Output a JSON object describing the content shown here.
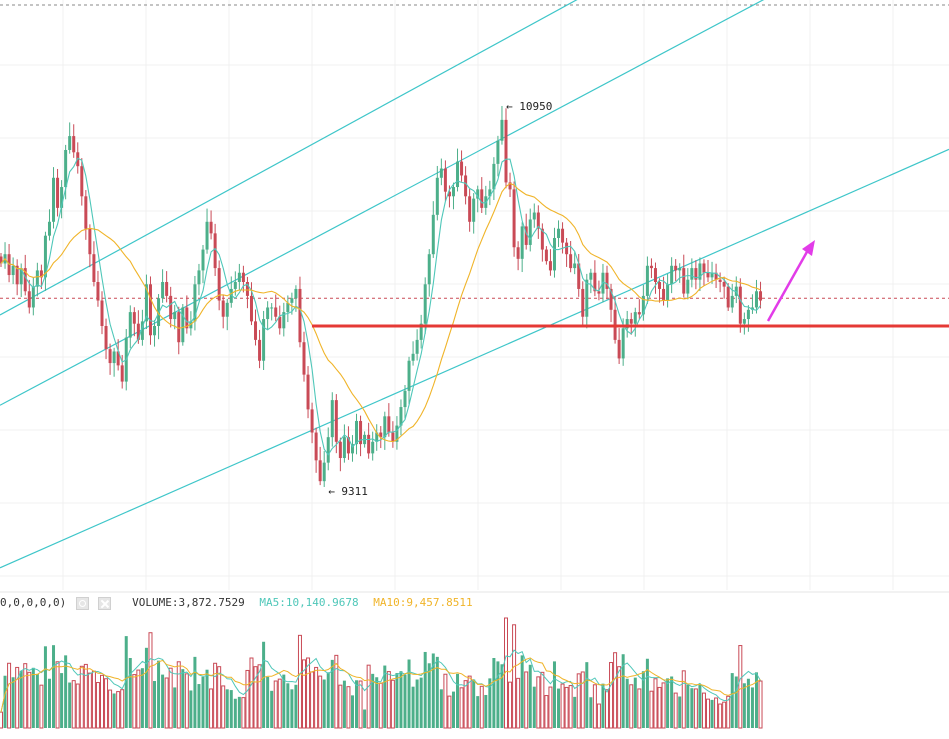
{
  "chart_data": {
    "type": "candlestick",
    "annotations": {
      "high_label": "← 10950",
      "low_label": "← 9311",
      "high_value": 10950,
      "low_value": 9311
    },
    "volume_legend": {
      "params": "0,0,0,0,0)",
      "volume": "VOLUME:3,872.7529",
      "ma5": "MA5:10,140.9678",
      "ma10": "MA10:9,457.8511"
    },
    "colors": {
      "up": "#4caf8a",
      "down": "#c94a56",
      "ma_fast": "#4fc7b9",
      "ma_slow": "#f0b429",
      "channel": "#3ec6c9",
      "support": "#e53935",
      "arrow": "#e23ce8",
      "reference": "#c94a56"
    },
    "support_level": 10000,
    "reference_level": 10120,
    "channel_lines": [
      {
        "name": "upper",
        "p0": [
          0,
          10050
        ],
        "p1": [
          150,
          11480
        ]
      },
      {
        "name": "middle",
        "p0": [
          0,
          9660
        ],
        "p1": [
          150,
          11050
        ]
      },
      {
        "name": "lower",
        "p0": [
          25,
          9150
        ],
        "p1": [
          155,
          10150
        ]
      }
    ],
    "closes": [
      10270,
      10310,
      10220,
      10260,
      10180,
      10250,
      10150,
      10080,
      10170,
      10240,
      10210,
      10390,
      10450,
      10640,
      10510,
      10600,
      10760,
      10820,
      10750,
      10690,
      10560,
      10420,
      10310,
      10190,
      10110,
      10000,
      9900,
      9840,
      9890,
      9830,
      9760,
      9950,
      10060,
      10010,
      9940,
      10020,
      10180,
      9960,
      10000,
      10120,
      10190,
      10130,
      10030,
      10060,
      9930,
      10080,
      9990,
      10020,
      10180,
      10240,
      10330,
      10450,
      10400,
      10250,
      10110,
      10040,
      10100,
      10160,
      10190,
      10230,
      10190,
      10130,
      10020,
      9940,
      9850,
      10030,
      10080,
      10080,
      10040,
      9990,
      10060,
      10100,
      10120,
      10160,
      9930,
      9790,
      9640,
      9540,
      9420,
      9330,
      9410,
      9520,
      9680,
      9500,
      9430,
      9520,
      9450,
      9490,
      9590,
      9490,
      9530,
      9450,
      9500,
      9540,
      9520,
      9610,
      9540,
      9500,
      9570,
      9650,
      9720,
      9850,
      9880,
      9940,
      10010,
      10180,
      10310,
      10480,
      10640,
      10680,
      10580,
      10560,
      10600,
      10710,
      10650,
      10560,
      10450,
      10550,
      10590,
      10510,
      10560,
      10590,
      10700,
      10800,
      10890,
      10620,
      10590,
      10340,
      10290,
      10430,
      10350,
      10460,
      10490,
      10420,
      10330,
      10280,
      10240,
      10380,
      10420,
      10360,
      10310,
      10250,
      10270,
      10160,
      10040,
      10200,
      10230,
      10150,
      10140,
      10230,
      10160,
      10070,
      9940,
      9860,
      9990,
      10030,
      10010,
      10060,
      10050,
      10130,
      10260,
      10250,
      10190,
      10160,
      10110,
      10180,
      10260,
      10240,
      10250,
      10140,
      10200,
      10250,
      10200,
      10270,
      10230,
      10210,
      10230,
      10200,
      10190,
      10170,
      10080,
      10130,
      10170,
      10010,
      10030,
      10070,
      10080,
      10150,
      10110
    ]
  }
}
